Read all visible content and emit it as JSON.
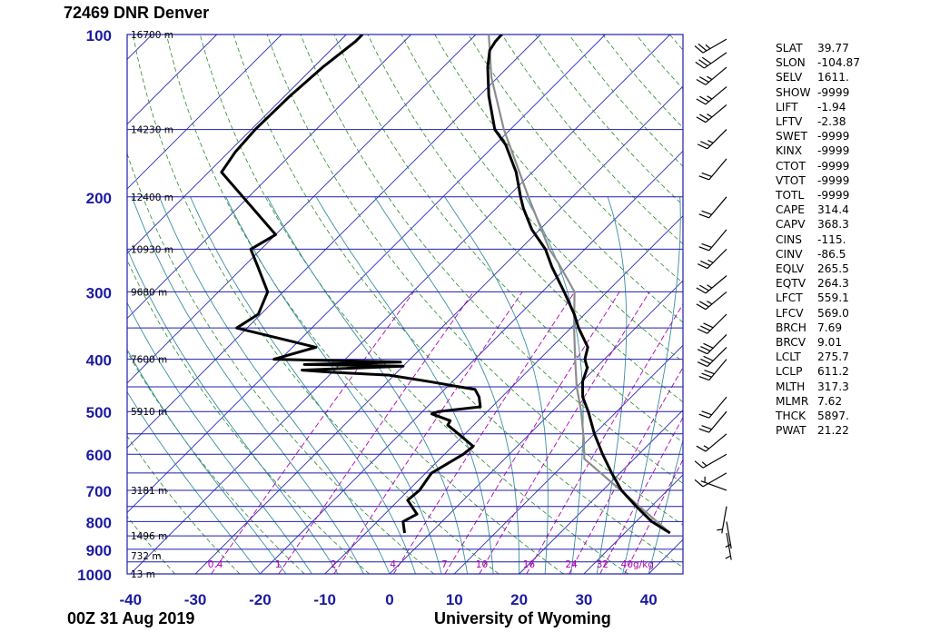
{
  "header": {
    "title": "72469 DNR Denver"
  },
  "footer": {
    "time": "00Z 31 Aug 2019",
    "source": "University of Wyoming"
  },
  "colors": {
    "isobar": "#1f1fa8",
    "isotherm": "#2b2bb8",
    "dry_adiabat": "#2a8a2a",
    "moist_adiabat": "#3a8ea0",
    "mixing_ratio": "#b000b0",
    "profile": "#000000",
    "parcel": "#8c8c8c",
    "axis_text": "#1a1aa0"
  },
  "chart_data": {
    "type": "skew-t",
    "title": "72469 DNR Denver",
    "xlabel": "",
    "ylabel": "",
    "pressure_ticks": [
      "100",
      "200",
      "300",
      "400",
      "500",
      "600",
      "700",
      "800",
      "900",
      "1000"
    ],
    "temperature_ticks": [
      "-40",
      "-30",
      "-20",
      "-10",
      "0",
      "10",
      "20",
      "30",
      "40"
    ],
    "xlim": [
      -40,
      45
    ],
    "ylim_hPa": [
      1000,
      100
    ],
    "height_labels": [
      {
        "p": 100,
        "label": "16700 m"
      },
      {
        "p": 150,
        "label": "14230 m"
      },
      {
        "p": 200,
        "label": "12400 m"
      },
      {
        "p": 250,
        "label": "10930 m"
      },
      {
        "p": 300,
        "label": "9680 m"
      },
      {
        "p": 400,
        "label": "7600 m"
      },
      {
        "p": 500,
        "label": "5910 m"
      },
      {
        "p": 700,
        "label": "3181 m"
      },
      {
        "p": 850,
        "label": "1496 m"
      },
      {
        "p": 925,
        "label": "732 m"
      },
      {
        "p": 1000,
        "label": "13 m"
      }
    ],
    "mixing_ratio_labels": [
      "0.4",
      "1",
      "2",
      "4",
      "7",
      "10",
      "16",
      "24",
      "32",
      "40g/kg"
    ],
    "temperature_profile": [
      {
        "p": 840,
        "t": 37.0
      },
      {
        "p": 800,
        "t": 32.4
      },
      {
        "p": 750,
        "t": 27.7
      },
      {
        "p": 700,
        "t": 22.9
      },
      {
        "p": 650,
        "t": 18.7
      },
      {
        "p": 600,
        "t": 14.4
      },
      {
        "p": 550,
        "t": 10.0
      },
      {
        "p": 500,
        "t": 5.6
      },
      {
        "p": 470,
        "t": 2.5
      },
      {
        "p": 440,
        "t": 0.1
      },
      {
        "p": 415,
        "t": -1.3
      },
      {
        "p": 400,
        "t": -3.0
      },
      {
        "p": 380,
        "t": -4.4
      },
      {
        "p": 350,
        "t": -8.8
      },
      {
        "p": 330,
        "t": -11.6
      },
      {
        "p": 300,
        "t": -16.6
      },
      {
        "p": 270,
        "t": -22.3
      },
      {
        "p": 250,
        "t": -26.1
      },
      {
        "p": 230,
        "t": -31.2
      },
      {
        "p": 210,
        "t": -35.8
      },
      {
        "p": 200,
        "t": -38.0
      },
      {
        "p": 180,
        "t": -42.5
      },
      {
        "p": 160,
        "t": -48.4
      },
      {
        "p": 150,
        "t": -52.4
      },
      {
        "p": 130,
        "t": -58.5
      },
      {
        "p": 115,
        "t": -63.1
      },
      {
        "p": 107,
        "t": -65.4
      },
      {
        "p": 103,
        "t": -65.9
      },
      {
        "p": 100,
        "t": -66.0
      }
    ],
    "dewpoint_profile": [
      {
        "p": 840,
        "td": -4.0
      },
      {
        "p": 800,
        "td": -6.0
      },
      {
        "p": 775,
        "td": -5.0
      },
      {
        "p": 730,
        "td": -8.6
      },
      {
        "p": 700,
        "td": -8.3
      },
      {
        "p": 650,
        "td": -9.1
      },
      {
        "p": 600,
        "td": -7.1
      },
      {
        "p": 580,
        "td": -6.8
      },
      {
        "p": 550,
        "td": -11.0
      },
      {
        "p": 530,
        "td": -14.0
      },
      {
        "p": 520,
        "td": -14.3
      },
      {
        "p": 505,
        "td": -18.2
      },
      {
        "p": 500,
        "td": -17.5
      },
      {
        "p": 490,
        "td": -11.8
      },
      {
        "p": 470,
        "td": -13.5
      },
      {
        "p": 455,
        "td": -15.3
      },
      {
        "p": 440,
        "td": -23.6
      },
      {
        "p": 428,
        "td": -30.8
      },
      {
        "p": 423,
        "td": -40.0
      },
      {
        "p": 419,
        "td": -45.0
      },
      {
        "p": 412,
        "td": -30.0
      },
      {
        "p": 409,
        "td": -45.5
      },
      {
        "p": 405,
        "td": -31.0
      },
      {
        "p": 400,
        "td": -51.0
      },
      {
        "p": 380,
        "td": -46.4
      },
      {
        "p": 350,
        "td": -61.6
      },
      {
        "p": 330,
        "td": -60.4
      },
      {
        "p": 300,
        "td": -62.4
      },
      {
        "p": 270,
        "td": -67.7
      },
      {
        "p": 250,
        "td": -71.6
      },
      {
        "p": 235,
        "td": -70.0
      },
      {
        "p": 180,
        "td": -88.0
      },
      {
        "p": 165,
        "td": -89.0
      },
      {
        "p": 150,
        "td": -89.4
      },
      {
        "p": 130,
        "td": -89.2
      },
      {
        "p": 115,
        "td": -88.6
      },
      {
        "p": 103,
        "td": -87.5
      },
      {
        "p": 100,
        "td": -87.5
      }
    ],
    "parcel_profile": [
      {
        "p": 840,
        "t": 37.0
      },
      {
        "p": 612,
        "t": 12.3
      },
      {
        "p": 560,
        "t": 9.0
      },
      {
        "p": 500,
        "t": 4.5
      },
      {
        "p": 450,
        "t": 0.0
      },
      {
        "p": 400,
        "t": -4.5
      },
      {
        "p": 350,
        "t": -9.5
      },
      {
        "p": 300,
        "t": -15.0
      },
      {
        "p": 265,
        "t": -22.0
      },
      {
        "p": 250,
        "t": -25.5
      },
      {
        "p": 200,
        "t": -36.8
      },
      {
        "p": 150,
        "t": -51.0
      },
      {
        "p": 120,
        "t": -61.0
      },
      {
        "p": 100,
        "t": -68.0
      }
    ],
    "wind_barbs": [
      {
        "p": 840,
        "dir": 170,
        "spd": 5
      },
      {
        "p": 800,
        "dir": 170,
        "spd": 5
      },
      {
        "p": 750,
        "dir": 190,
        "spd": 5
      },
      {
        "p": 700,
        "dir": 290,
        "spd": 5
      },
      {
        "p": 650,
        "dir": 240,
        "spd": 10
      },
      {
        "p": 600,
        "dir": 240,
        "spd": 15
      },
      {
        "p": 550,
        "dir": 230,
        "spd": 15
      },
      {
        "p": 500,
        "dir": 220,
        "spd": 20
      },
      {
        "p": 470,
        "dir": 220,
        "spd": 20
      },
      {
        "p": 400,
        "dir": 220,
        "spd": 30
      },
      {
        "p": 380,
        "dir": 225,
        "spd": 30
      },
      {
        "p": 360,
        "dir": 225,
        "spd": 30
      },
      {
        "p": 330,
        "dir": 225,
        "spd": 30
      },
      {
        "p": 300,
        "dir": 230,
        "spd": 25
      },
      {
        "p": 280,
        "dir": 230,
        "spd": 25
      },
      {
        "p": 250,
        "dir": 225,
        "spd": 25
      },
      {
        "p": 230,
        "dir": 220,
        "spd": 20
      },
      {
        "p": 200,
        "dir": 220,
        "spd": 20
      },
      {
        "p": 170,
        "dir": 220,
        "spd": 20
      },
      {
        "p": 150,
        "dir": 225,
        "spd": 25
      },
      {
        "p": 135,
        "dir": 230,
        "spd": 25
      },
      {
        "p": 125,
        "dir": 230,
        "spd": 25
      },
      {
        "p": 115,
        "dir": 230,
        "spd": 25
      },
      {
        "p": 108,
        "dir": 235,
        "spd": 30
      },
      {
        "p": 102,
        "dir": 240,
        "spd": 25
      }
    ],
    "legend": "none",
    "grid": true
  },
  "indices": [
    {
      "name": "SLAT",
      "value": "39.77"
    },
    {
      "name": "SLON",
      "value": "-104.87"
    },
    {
      "name": "SELV",
      "value": "1611."
    },
    {
      "name": "SHOW",
      "value": "-9999"
    },
    {
      "name": "LIFT",
      "value": "-1.94"
    },
    {
      "name": "LFTV",
      "value": "-2.38"
    },
    {
      "name": "SWET",
      "value": "-9999"
    },
    {
      "name": "KINX",
      "value": "-9999"
    },
    {
      "name": "CTOT",
      "value": "-9999"
    },
    {
      "name": "VTOT",
      "value": "-9999"
    },
    {
      "name": "TOTL",
      "value": "-9999"
    },
    {
      "name": "CAPE",
      "value": "314.4"
    },
    {
      "name": "CAPV",
      "value": "368.3"
    },
    {
      "name": "CINS",
      "value": "-115."
    },
    {
      "name": "CINV",
      "value": "-86.5"
    },
    {
      "name": "EQLV",
      "value": "265.5"
    },
    {
      "name": "EQTV",
      "value": "264.3"
    },
    {
      "name": "LFCT",
      "value": "559.1"
    },
    {
      "name": "LFCV",
      "value": "569.0"
    },
    {
      "name": "BRCH",
      "value": "7.69"
    },
    {
      "name": "BRCV",
      "value": "9.01"
    },
    {
      "name": "LCLT",
      "value": "275.7"
    },
    {
      "name": "LCLP",
      "value": "611.2"
    },
    {
      "name": "MLTH",
      "value": "317.3"
    },
    {
      "name": "MLMR",
      "value": "7.62"
    },
    {
      "name": "THCK",
      "value": "5897."
    },
    {
      "name": "PWAT",
      "value": "21.22"
    }
  ]
}
